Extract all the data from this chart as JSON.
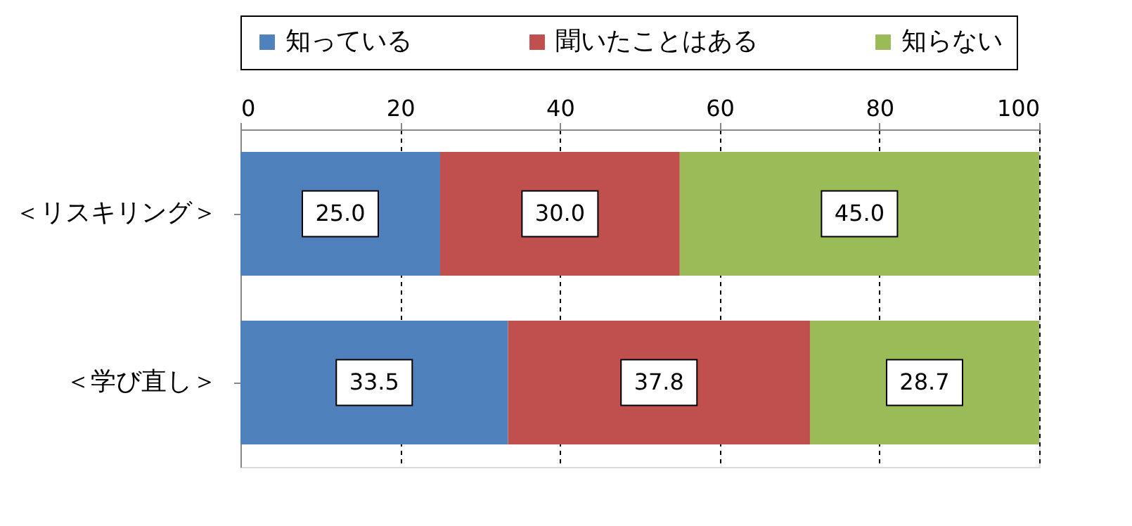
{
  "chart_data": {
    "type": "bar",
    "orientation": "horizontal",
    "stacked": true,
    "categories": [
      "＜リスキリング＞",
      "＜学び直し＞"
    ],
    "series": [
      {
        "name": "知っている",
        "color": "#4f81bd",
        "values": [
          25.0,
          33.5
        ],
        "value_labels": [
          "25.0",
          "33.5"
        ]
      },
      {
        "name": "聞いたことはある",
        "color": "#c0504d",
        "values": [
          30.0,
          37.8
        ],
        "value_labels": [
          "30.0",
          "37.8"
        ]
      },
      {
        "name": "知らない",
        "color": "#9bbb59",
        "values": [
          45.0,
          28.7
        ],
        "value_labels": [
          "45.0",
          "28.7"
        ]
      }
    ],
    "xlim": [
      0,
      100
    ],
    "xticks": [
      0,
      20,
      40,
      60,
      80,
      100
    ],
    "grid": "x",
    "legend": "top"
  }
}
